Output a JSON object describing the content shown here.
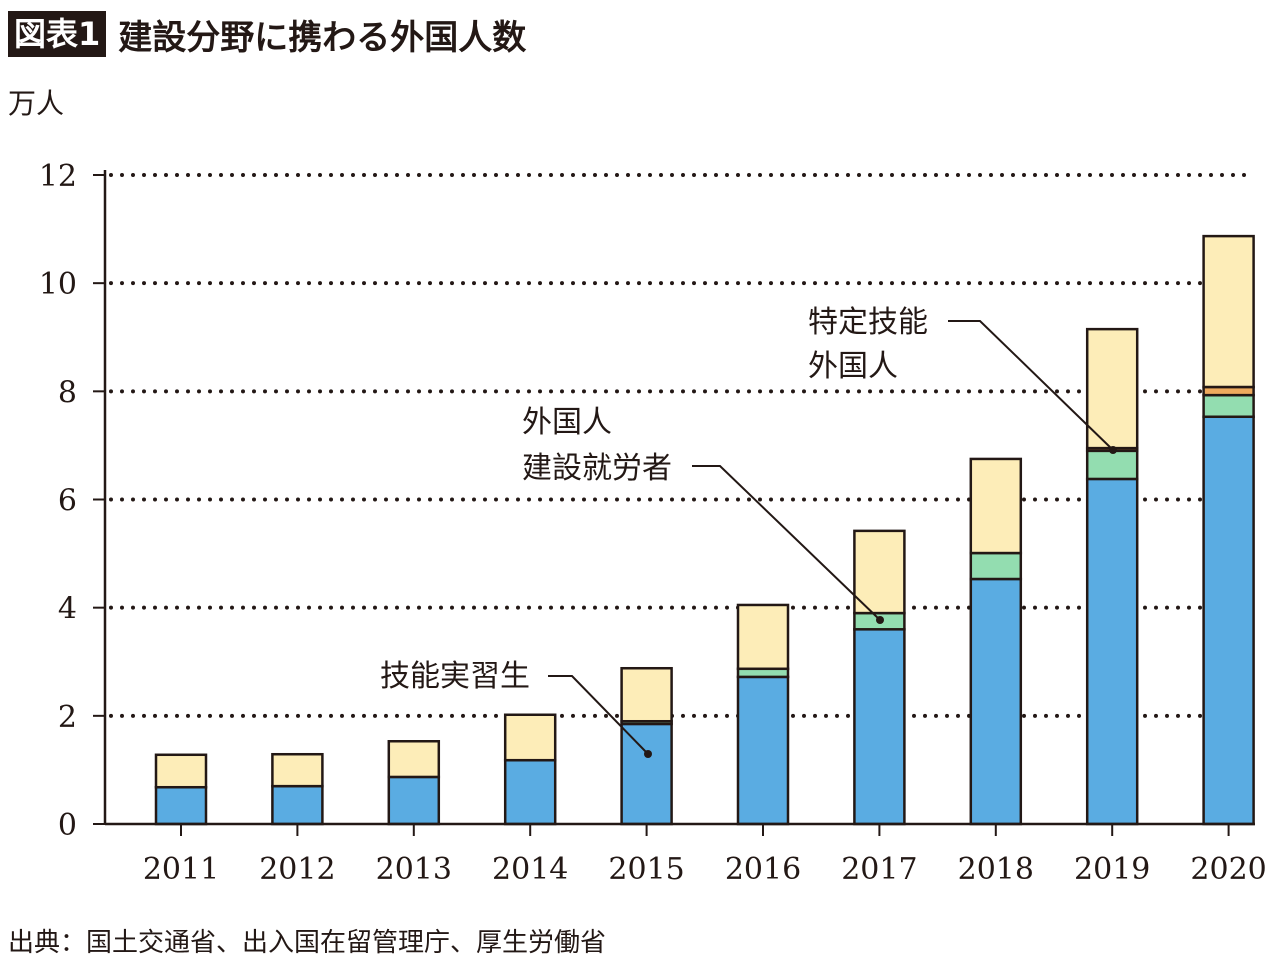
{
  "title_badge": "図表1",
  "title": "建設分野に携わる外国人数",
  "source": "出典：国土交通省、出入国在留管理庁、厚生労働省",
  "chart_data": {
    "type": "bar",
    "stacked": true,
    "title": "建設分野に携わる外国人数",
    "ylabel": "万人",
    "ylim": [
      0,
      12
    ],
    "yticks": [
      0,
      2,
      4,
      6,
      8,
      10,
      12
    ],
    "grid": "horizontal dotted",
    "categories": [
      "2011",
      "2012",
      "2013",
      "2014",
      "2015",
      "2016",
      "2017",
      "2018",
      "2019",
      "2020"
    ],
    "series": [
      {
        "name": "技能実習生",
        "color": "#5aace2",
        "values": [
          0.68,
          0.7,
          0.87,
          1.18,
          1.85,
          2.72,
          3.6,
          4.53,
          6.38,
          7.53
        ]
      },
      {
        "name": "外国人建設就労者",
        "color": "#93ddb0",
        "values": [
          0,
          0,
          0,
          0,
          0.05,
          0.15,
          0.3,
          0.48,
          0.52,
          0.4
        ]
      },
      {
        "name": "特定技能外国人",
        "color": "#eeaa5e",
        "values": [
          0,
          0,
          0,
          0,
          0,
          0,
          0,
          0,
          0.05,
          0.15
        ]
      },
      {
        "color": "#fdedb8",
        "values": [
          0.6,
          0.59,
          0.66,
          0.84,
          0.98,
          1.18,
          1.52,
          1.74,
          2.2,
          2.79
        ]
      }
    ],
    "annotations": {
      "trainee": "技能実習生",
      "worker_line1": "外国人",
      "worker_line2": "建設就労者",
      "specified_line1": "特定技能",
      "specified_line2": "外国人"
    }
  }
}
